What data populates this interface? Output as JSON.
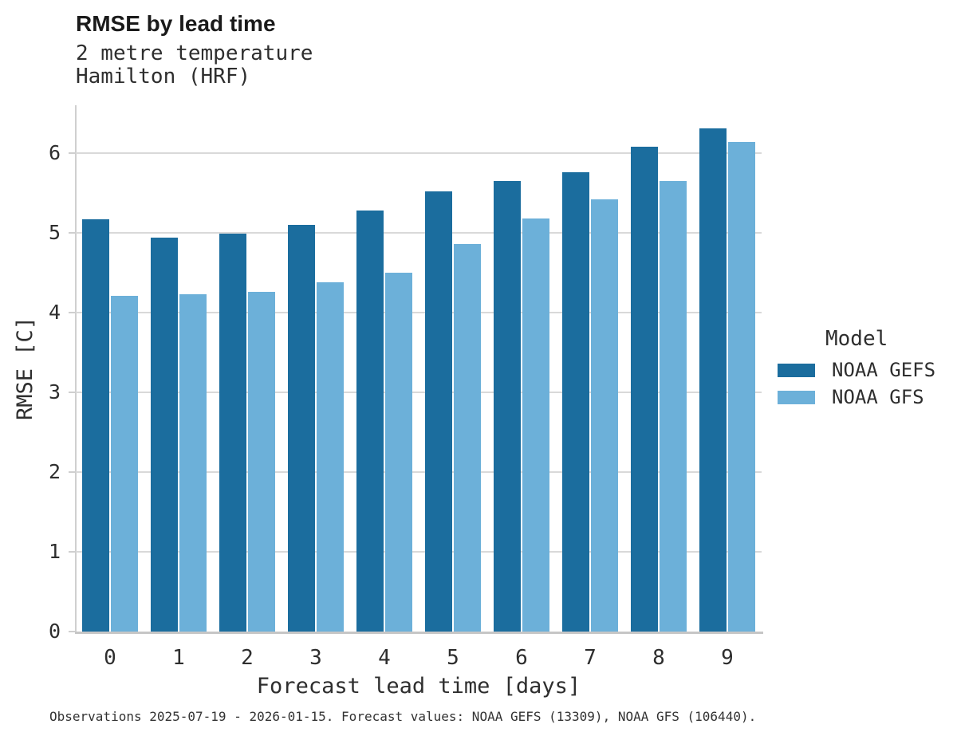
{
  "header": {
    "title": "RMSE by lead time",
    "subtitle_line1": "2 metre temperature",
    "subtitle_line2": "Hamilton (HRF)"
  },
  "footer": {
    "note": "Observations 2025-07-19 - 2026-01-15. Forecast values: NOAA GEFS (13309), NOAA GFS (106440)."
  },
  "legend": {
    "title": "Model",
    "items": [
      {
        "label": "NOAA GEFS",
        "color": "#1b6d9e"
      },
      {
        "label": "NOAA GFS",
        "color": "#6cb0d9"
      }
    ]
  },
  "colors": {
    "gefs_bar": "#1b6d9e",
    "gfs_bar": "#6cb0d9",
    "gridline": "#d9d9d9",
    "axis_line": "#c6c6c6",
    "text": "#2e2e2e"
  },
  "chart_data": {
    "type": "bar",
    "title": "RMSE by lead time",
    "subtitle": [
      "2 metre temperature",
      "Hamilton (HRF)"
    ],
    "categories": [
      "0",
      "1",
      "2",
      "3",
      "4",
      "5",
      "6",
      "7",
      "8",
      "9"
    ],
    "series": [
      {
        "name": "NOAA GEFS",
        "color": "#1b6d9e",
        "values": [
          5.17,
          4.94,
          4.99,
          5.1,
          5.28,
          5.52,
          5.65,
          5.76,
          6.08,
          6.31
        ]
      },
      {
        "name": "NOAA GFS",
        "color": "#6cb0d9",
        "values": [
          4.21,
          4.23,
          4.26,
          4.38,
          4.5,
          4.86,
          5.18,
          5.42,
          5.65,
          6.14
        ]
      }
    ],
    "xlabel": "Forecast lead time [days]",
    "ylabel": "RMSE [C]",
    "ylim": [
      0,
      6.6
    ],
    "yticks": [
      0,
      1,
      2,
      3,
      4,
      5,
      6
    ],
    "grid": "horizontal",
    "legend_title": "Model",
    "legend_position": "right",
    "caption": "Observations 2025-07-19 - 2026-01-15. Forecast values: NOAA GEFS (13309), NOAA GFS (106440)."
  }
}
